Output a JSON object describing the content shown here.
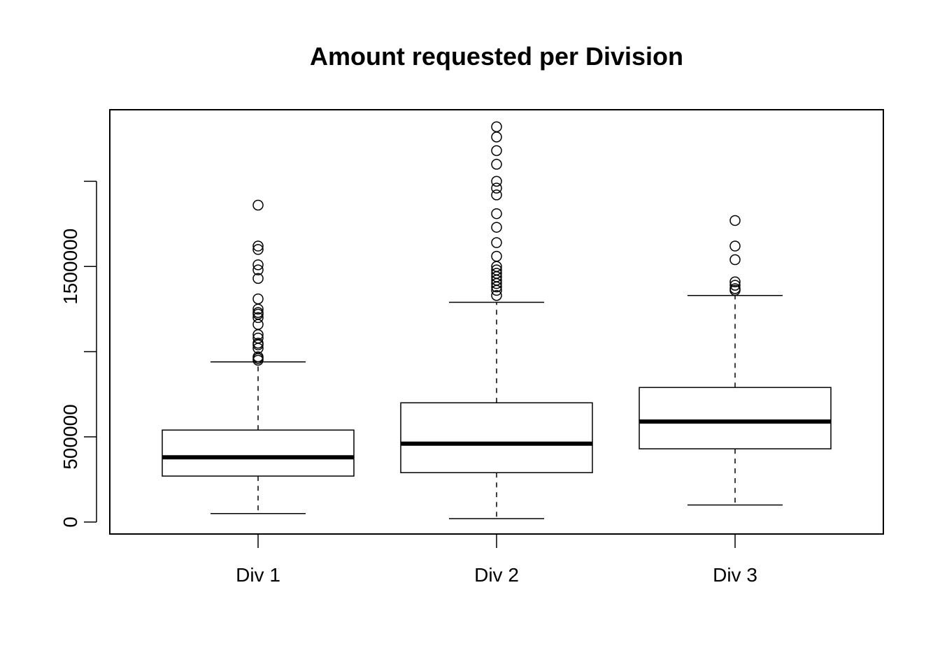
{
  "chart_data": {
    "type": "boxplot",
    "title": "Amount requested per Division",
    "xlabel": "",
    "ylabel": "",
    "ylim": [
      -70000,
      2420000
    ],
    "y_ticks": [
      0,
      500000,
      1000000,
      1500000,
      2000000
    ],
    "y_tick_labels": [
      "0",
      "500000",
      "",
      "1500000",
      ""
    ],
    "grid": false,
    "legend": "none",
    "categories": [
      "Div 1",
      "Div 2",
      "Div 3"
    ],
    "boxes": [
      {
        "name": "Div 1",
        "whisker_low": 50000,
        "q1": 270000,
        "median": 380000,
        "q3": 540000,
        "whisker_high": 940000,
        "outliers": [
          1860000,
          1620000,
          1600000,
          1510000,
          1480000,
          1430000,
          1310000,
          1250000,
          1230000,
          1220000,
          1200000,
          1160000,
          1100000,
          1080000,
          1050000,
          1040000,
          1020000,
          970000,
          960000,
          950000
        ]
      },
      {
        "name": "Div 2",
        "whisker_low": 20000,
        "q1": 290000,
        "median": 460000,
        "q3": 700000,
        "whisker_high": 1290000,
        "outliers": [
          2320000,
          2260000,
          2180000,
          2100000,
          2000000,
          1960000,
          1920000,
          1810000,
          1730000,
          1640000,
          1560000,
          1500000,
          1480000,
          1460000,
          1440000,
          1420000,
          1400000,
          1380000,
          1360000,
          1330000
        ]
      },
      {
        "name": "Div 3",
        "whisker_low": 100000,
        "q1": 430000,
        "median": 590000,
        "q3": 790000,
        "whisker_high": 1330000,
        "outliers": [
          1770000,
          1620000,
          1540000,
          1410000,
          1390000,
          1370000,
          1360000
        ]
      }
    ]
  }
}
